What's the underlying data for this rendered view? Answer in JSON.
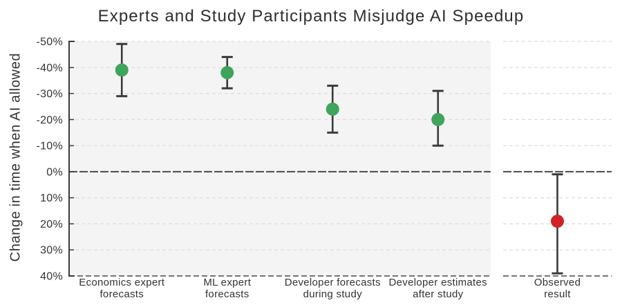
{
  "chart_data": {
    "type": "scatter",
    "title": "Experts and Study Participants Misjudge AI Speedup",
    "ylabel": "Change in time when AI allowed",
    "ylim": [
      -50,
      40
    ],
    "y_axis_note": "inverted: negative (speedup) at top, positive (slowdown) at bottom",
    "grid": "dashed horizontal lines, zero line and bottom line darker",
    "legend": "none",
    "y_ticks": [
      {
        "value": -50,
        "label": "-50%"
      },
      {
        "value": -40,
        "label": "-40%"
      },
      {
        "value": -30,
        "label": "-30%"
      },
      {
        "value": -20,
        "label": "-20%"
      },
      {
        "value": -10,
        "label": "-10%"
      },
      {
        "value": 0,
        "label": "0%"
      },
      {
        "value": 10,
        "label": "10%"
      },
      {
        "value": 20,
        "label": "20%"
      },
      {
        "value": 30,
        "label": "30%"
      },
      {
        "value": 40,
        "label": "40%"
      }
    ],
    "points": [
      {
        "category": "Economics expert forecasts",
        "label_lines": [
          "Economics expert",
          "forecasts"
        ],
        "value": -39,
        "ci_low": -49,
        "ci_high": -29,
        "marker_color": "#3fa45c",
        "panel": "main"
      },
      {
        "category": "ML expert forecasts",
        "label_lines": [
          "ML expert",
          "forecasts"
        ],
        "value": -38,
        "ci_low": -44,
        "ci_high": -32,
        "marker_color": "#3fa45c",
        "panel": "main"
      },
      {
        "category": "Developer forecasts during study",
        "label_lines": [
          "Developer forecasts",
          "during study"
        ],
        "value": -24,
        "ci_low": -33,
        "ci_high": -15,
        "marker_color": "#3fa45c",
        "panel": "main"
      },
      {
        "category": "Developer estimates after study",
        "label_lines": [
          "Developer estimates",
          "after study"
        ],
        "value": -20,
        "ci_low": -31,
        "ci_high": -10,
        "marker_color": "#3fa45c",
        "panel": "main"
      },
      {
        "category": "Observed result",
        "label_lines": [
          "Observed",
          "result"
        ],
        "value": 19,
        "ci_low": 1,
        "ci_high": 39,
        "marker_color": "#d12127",
        "panel": "observed"
      }
    ],
    "style_colors": {
      "panel_bg": "#f4f4f4",
      "gridline": "#dedede",
      "dark_line": "#474747",
      "axis": "#3a3a3a",
      "error_bar": "#3a3a3a",
      "text": "#333333",
      "green": "#3fa45c",
      "red": "#d12127"
    }
  }
}
